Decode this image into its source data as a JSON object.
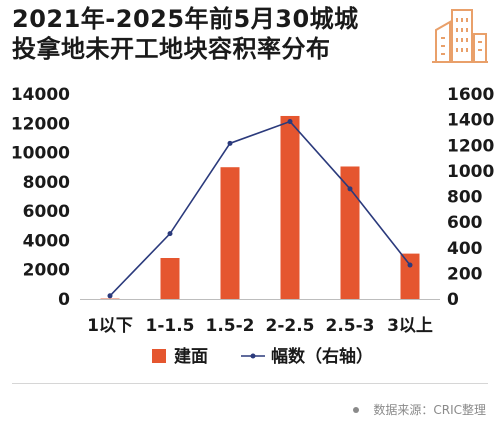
{
  "title_lines": [
    "2021年-2025年前5月30城城",
    "投拿地未开工地块容积率分布"
  ],
  "source": "数据来源：CRIC整理",
  "logo_icon": "building-icon",
  "colors": {
    "bar": "#e5562f",
    "line": "#2b3a7c",
    "logo": "#e9a06a"
  },
  "chart_data": {
    "type": "bar",
    "categories": [
      "1以下",
      "1-1.5",
      "1.5-2",
      "2-2.5",
      "2.5-3",
      "3以上"
    ],
    "series": [
      {
        "name": "建面",
        "type": "bar",
        "axis": "left",
        "values": [
          30,
          2800,
          9000,
          12500,
          9050,
          3100
        ]
      },
      {
        "name": "幅数（右轴）",
        "type": "line",
        "axis": "right",
        "values": [
          25,
          510,
          1215,
          1385,
          860,
          265
        ]
      }
    ],
    "left_axis": {
      "ylim": [
        0,
        14000
      ],
      "ticks": [
        0,
        2000,
        4000,
        6000,
        8000,
        10000,
        12000,
        14000
      ]
    },
    "right_axis": {
      "ylim": [
        0,
        1600
      ],
      "ticks": [
        0,
        200,
        400,
        600,
        800,
        1000,
        1200,
        1400,
        1600
      ]
    },
    "grid": false,
    "legend": "bottom"
  }
}
